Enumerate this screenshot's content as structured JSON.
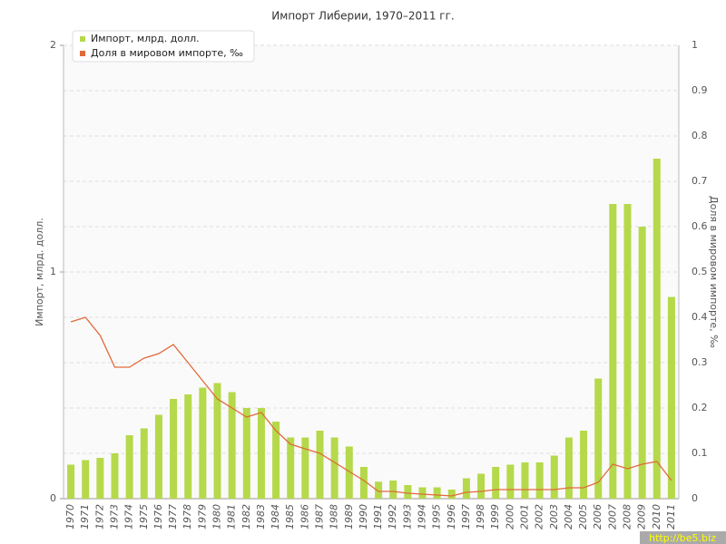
{
  "chart_data": {
    "type": "bar_line",
    "title": "Импорт Либерии, 1970–2011 гг.",
    "y_label": "Импорт, млрд. долл.",
    "y2_label": "Доля в мировом импорте, ‰",
    "watermark": "http://be5.biz",
    "legend_position": "upper left",
    "grid": true,
    "categories": [
      "1970",
      "1971",
      "1972",
      "1973",
      "1974",
      "1975",
      "1976",
      "1977",
      "1978",
      "1979",
      "1980",
      "1981",
      "1982",
      "1983",
      "1984",
      "1985",
      "1986",
      "1987",
      "1988",
      "1989",
      "1990",
      "1991",
      "1992",
      "1993",
      "1994",
      "1995",
      "1996",
      "1997",
      "1998",
      "1999",
      "2000",
      "2001",
      "2002",
      "2003",
      "2004",
      "2005",
      "2006",
      "2007",
      "2008",
      "2009",
      "2010",
      "2011"
    ],
    "series": [
      {
        "name": "Импорт, млрд. долл.",
        "color": "#b5d94a",
        "type": "bar",
        "values": [
          0.15,
          0.17,
          0.18,
          0.2,
          0.28,
          0.31,
          0.37,
          0.44,
          0.46,
          0.49,
          0.51,
          0.47,
          0.4,
          0.4,
          0.34,
          0.27,
          0.27,
          0.3,
          0.27,
          0.23,
          0.14,
          0.075,
          0.08,
          0.06,
          0.05,
          0.05,
          0.04,
          0.09,
          0.11,
          0.14,
          0.15,
          0.16,
          0.16,
          0.19,
          0.27,
          0.3,
          0.53,
          1.3,
          1.3,
          1.2,
          1.5,
          0.89
        ]
      },
      {
        "name": "Доля в мировом импорте, ‰",
        "color": "#e06a3a",
        "type": "line",
        "axis": "y2",
        "values": [
          0.39,
          0.4,
          0.36,
          0.29,
          0.29,
          0.31,
          0.32,
          0.34,
          0.3,
          0.26,
          0.22,
          0.2,
          0.18,
          0.19,
          0.15,
          0.12,
          0.11,
          0.1,
          0.08,
          0.06,
          0.04,
          0.016,
          0.016,
          0.012,
          0.01,
          0.008,
          0.006,
          0.014,
          0.016,
          0.02,
          0.02,
          0.02,
          0.02,
          0.02,
          0.024,
          0.024,
          0.036,
          0.076,
          0.066,
          0.076,
          0.082,
          0.04
        ]
      }
    ],
    "ylim": [
      0,
      2
    ],
    "yticks": [
      0,
      1,
      2
    ],
    "y2lim": [
      0,
      1
    ],
    "y2ticks": [
      0,
      0.1,
      0.2,
      0.3,
      0.4,
      0.5,
      0.6,
      0.7,
      0.8,
      0.9,
      1
    ]
  }
}
